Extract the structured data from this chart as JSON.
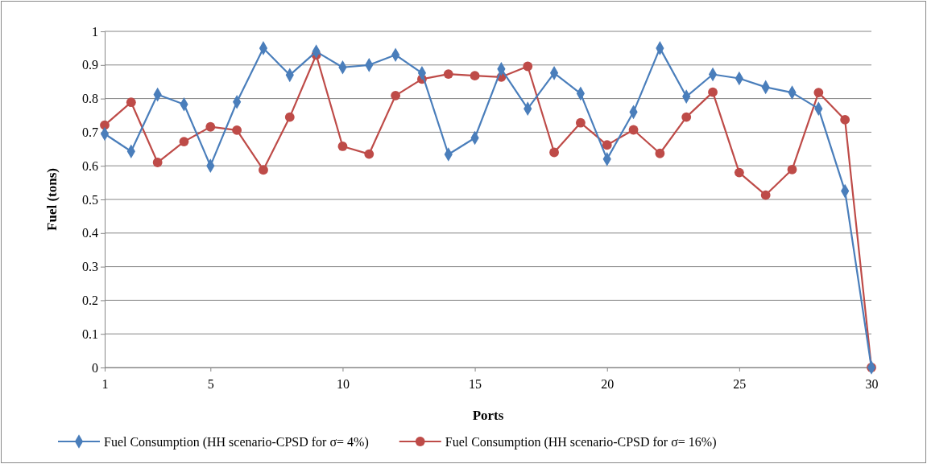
{
  "chart_data": {
    "type": "line",
    "xlabel": "Ports",
    "ylabel": "Fuel (tons)",
    "x": [
      1,
      2,
      3,
      4,
      5,
      6,
      7,
      8,
      9,
      10,
      11,
      12,
      13,
      14,
      15,
      16,
      17,
      18,
      19,
      20,
      21,
      22,
      23,
      24,
      25,
      26,
      27,
      28,
      29,
      30
    ],
    "xlim": [
      1,
      30
    ],
    "xticks": [
      1,
      5,
      10,
      15,
      20,
      25,
      30
    ],
    "ylim": [
      0,
      1
    ],
    "yticks": [
      0,
      0.1,
      0.2,
      0.3,
      0.4,
      0.5,
      0.6,
      0.7,
      0.8,
      0.9,
      1
    ],
    "grid": "y",
    "legend": "bottom",
    "series": [
      {
        "name": "Fuel Consumption (HH scenario-CPSD for σ= 4%)",
        "color": "#4a7ebb",
        "marker": "diamond",
        "values": [
          0.695,
          0.643,
          0.812,
          0.783,
          0.6,
          0.79,
          0.95,
          0.87,
          0.94,
          0.893,
          0.9,
          0.93,
          0.876,
          0.634,
          0.683,
          0.888,
          0.77,
          0.876,
          0.815,
          0.62,
          0.76,
          0.95,
          0.806,
          0.872,
          0.86,
          0.834,
          0.818,
          0.77,
          0.525,
          0
        ]
      },
      {
        "name": "Fuel Consumption (HH scenario-CPSD for σ= 16%)",
        "color": "#be4b48",
        "marker": "circle",
        "values": [
          0.721,
          0.789,
          0.61,
          0.672,
          0.716,
          0.706,
          0.588,
          0.745,
          0.93,
          0.658,
          0.635,
          0.809,
          0.858,
          0.873,
          0.868,
          0.864,
          0.896,
          0.64,
          0.728,
          0.662,
          0.707,
          0.637,
          0.745,
          0.819,
          0.58,
          0.513,
          0.589,
          0.818,
          0.737,
          0
        ]
      }
    ]
  }
}
